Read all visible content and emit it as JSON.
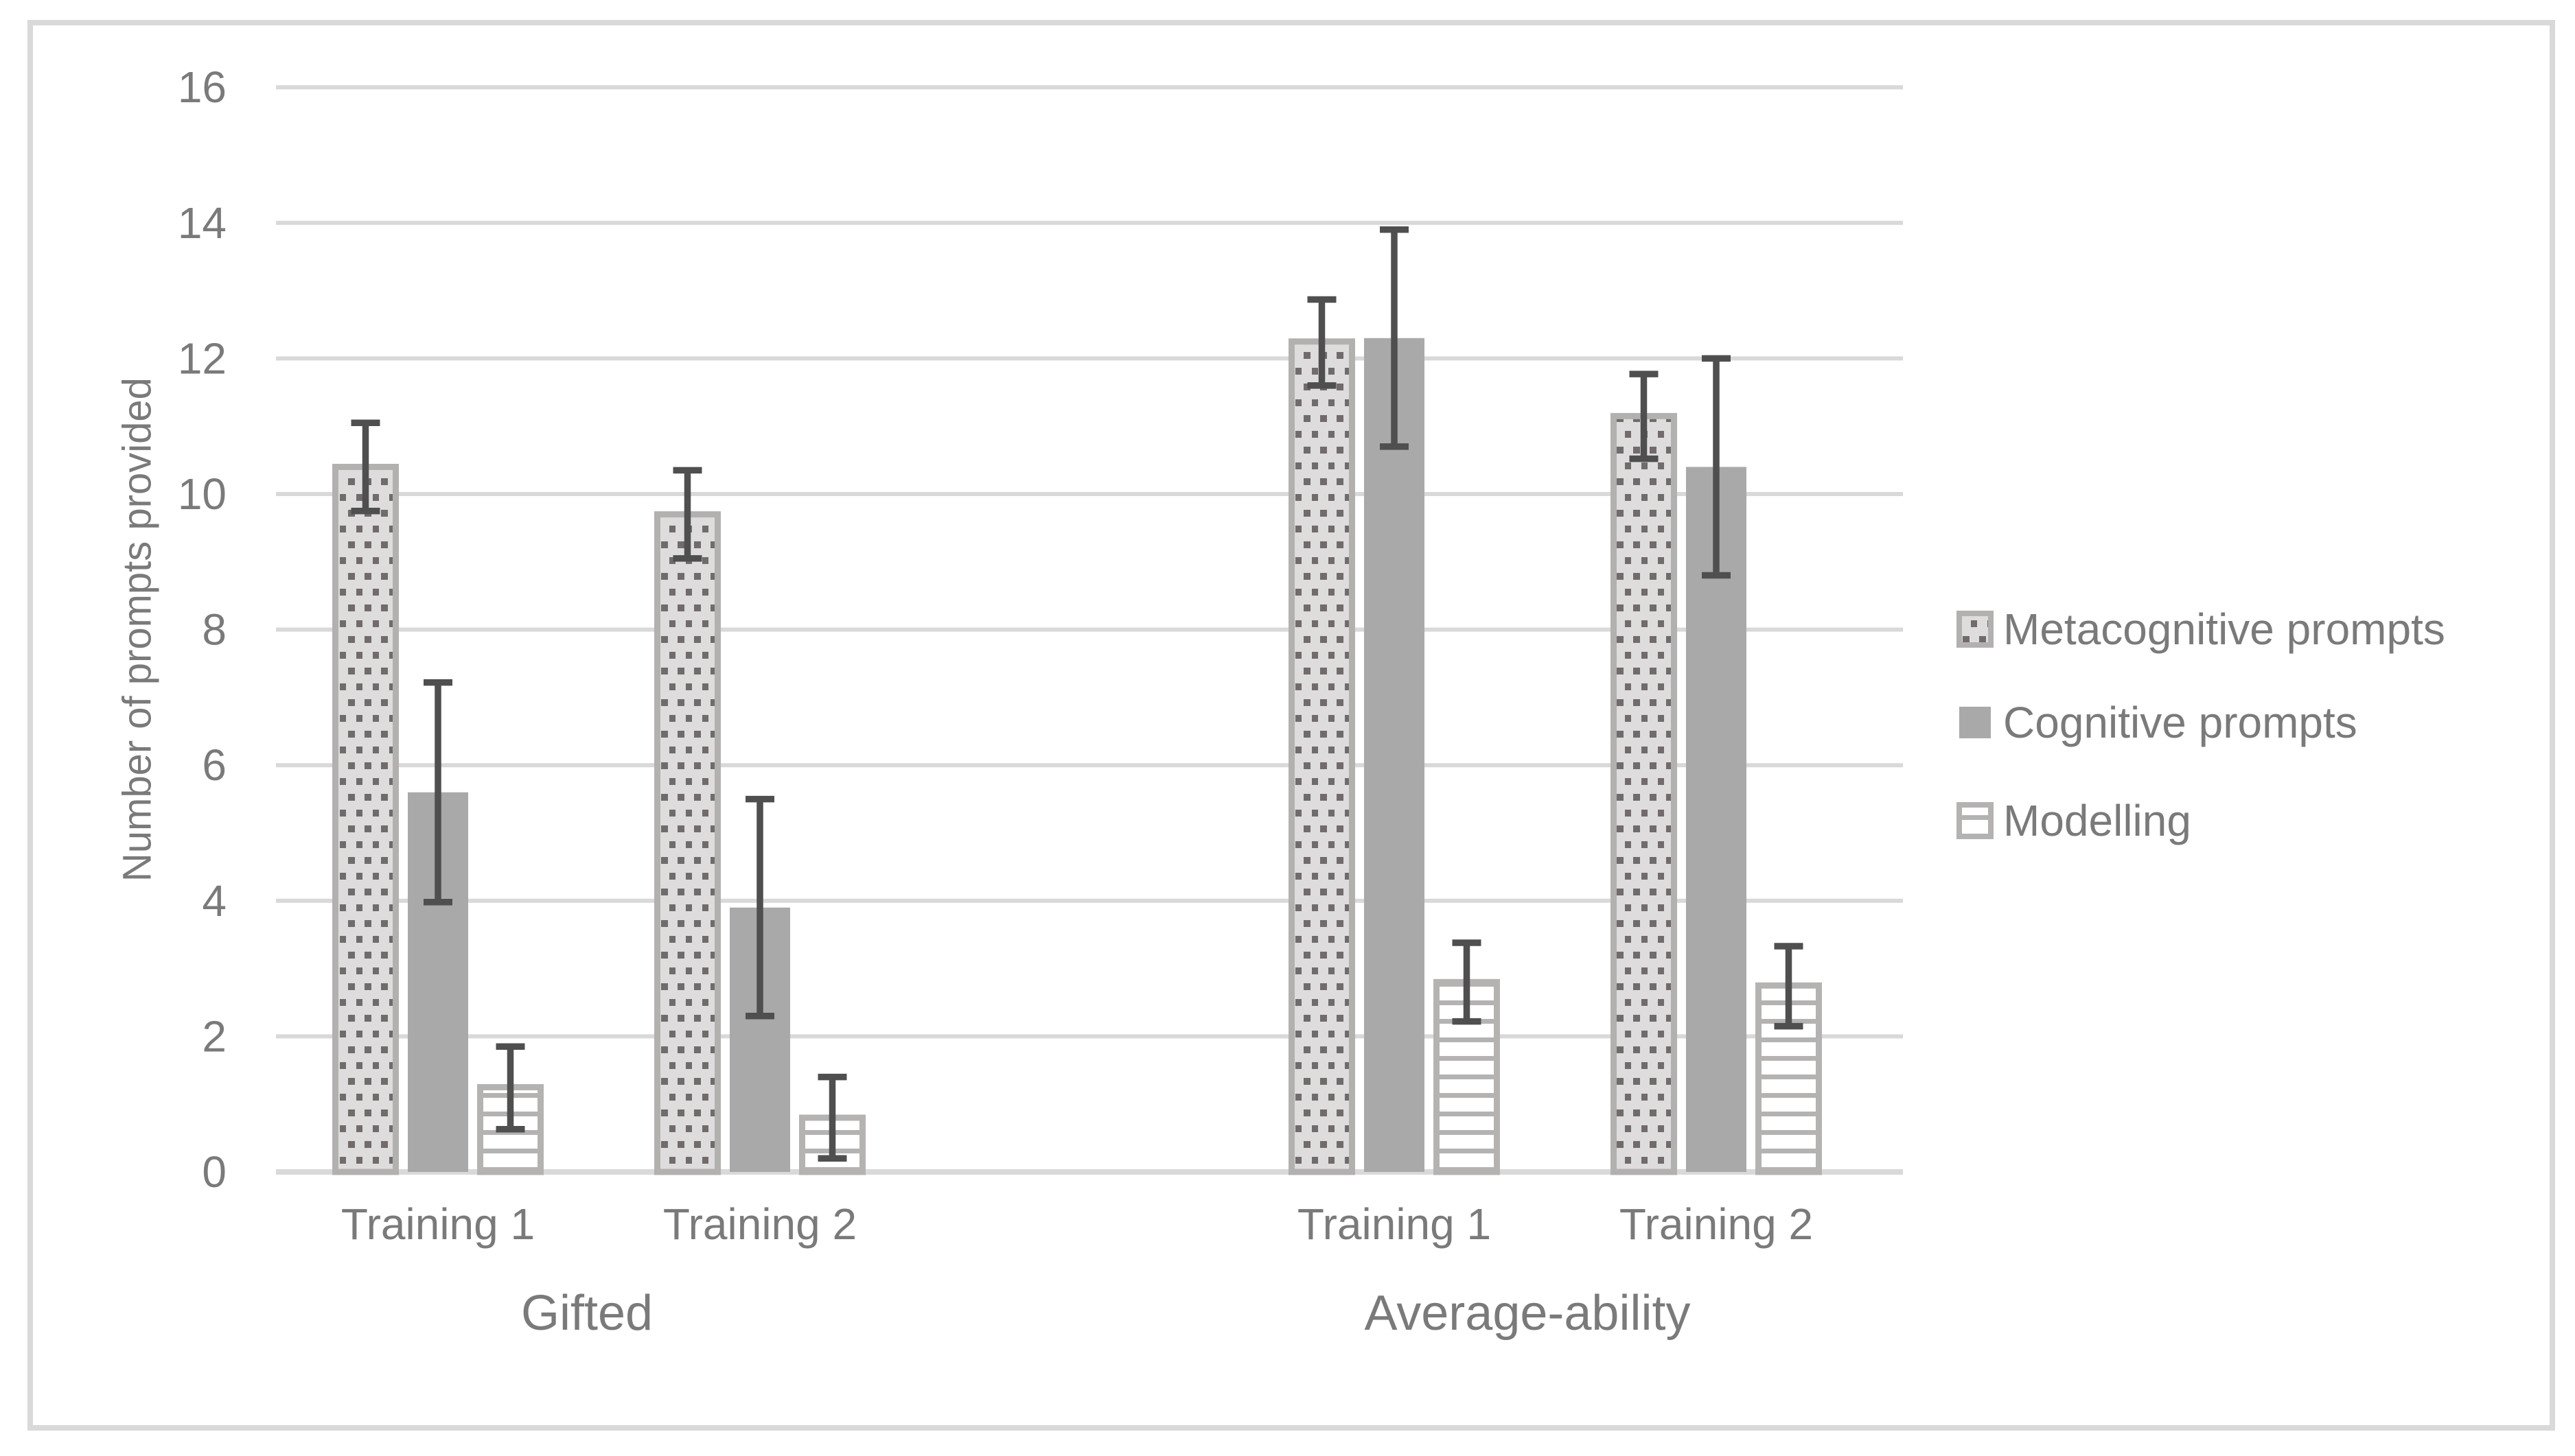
{
  "chart_data": {
    "type": "bar",
    "title": "",
    "ylabel": "Number of prompts provided",
    "xlabel": "",
    "ylim": [
      0,
      16
    ],
    "yticks": [
      0,
      2,
      4,
      6,
      8,
      10,
      12,
      14,
      16
    ],
    "grid": "horizontal-light-gray",
    "legend_position": "right-middle",
    "group_labels": [
      "Gifted",
      "Average-ability"
    ],
    "categories": [
      "Training 1",
      "Training 2",
      "Training 1",
      "Training 2"
    ],
    "category_group_index": [
      0,
      0,
      1,
      1
    ],
    "series": [
      {
        "name": "Metacognitive prompts",
        "pattern": "dotted",
        "values": [
          10.4,
          9.7,
          12.25,
          11.15
        ],
        "err_low": [
          0.65,
          0.65,
          0.65,
          0.63
        ],
        "err_high": [
          0.65,
          0.65,
          0.62,
          0.62
        ]
      },
      {
        "name": "Cognitive prompts",
        "pattern": "solid",
        "values": [
          5.6,
          3.9,
          12.3,
          10.4
        ],
        "err_low": [
          1.62,
          1.6,
          1.6,
          1.6
        ],
        "err_high": [
          1.62,
          1.6,
          1.6,
          1.6
        ]
      },
      {
        "name": "Modelling",
        "pattern": "horizontal-stripes",
        "values": [
          1.25,
          0.8,
          2.8,
          2.75
        ],
        "err_low": [
          0.62,
          0.6,
          0.58,
          0.6
        ],
        "err_high": [
          0.6,
          0.6,
          0.58,
          0.58
        ]
      }
    ],
    "colors": {
      "text": "#7a7a7a",
      "gridline": "#d9d9d9",
      "axis_line": "#d9d9d9",
      "figure_border": "#d9d9d9",
      "bar_solid": "#a9a9a9",
      "bar_dotted_bg": "#dedcdc",
      "bar_dotted_dot": "#716b6b",
      "bar_dotted_border": "#b3b0b0",
      "bar_stripe_line": "#b5b2b2",
      "bar_stripe_bg": "#ffffff",
      "error_bar": "#4f4f4f",
      "background": "#ffffff"
    }
  }
}
